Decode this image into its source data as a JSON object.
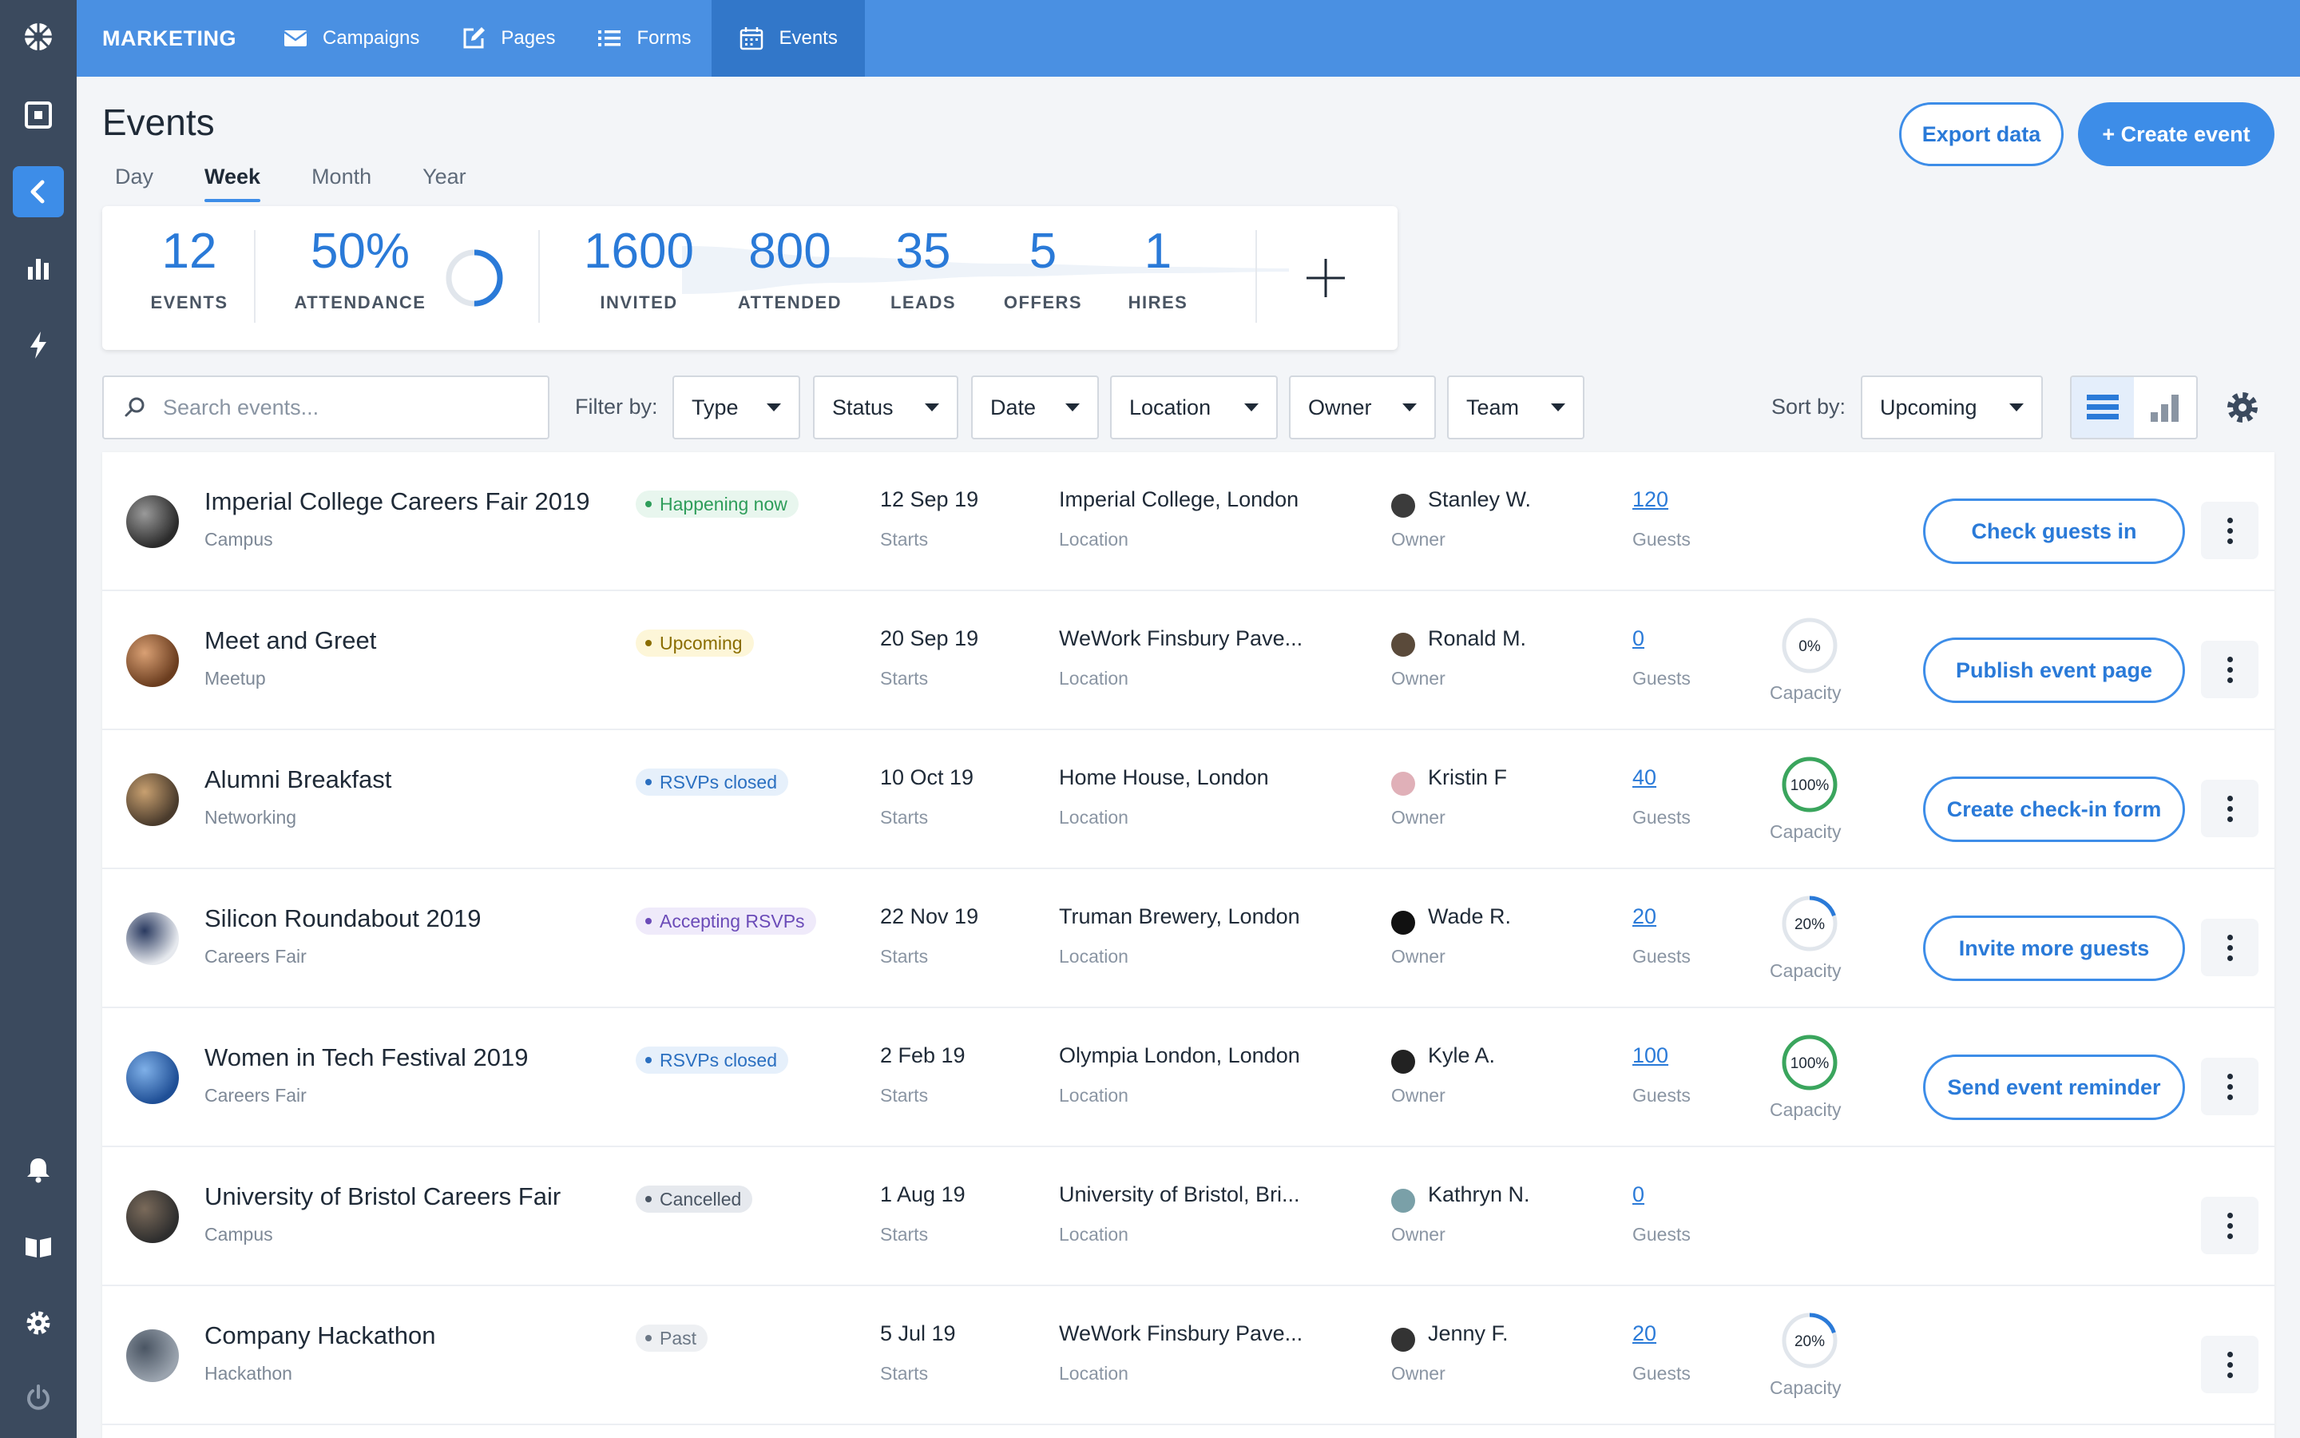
{
  "nav": {
    "brand": "MARKETING",
    "items": [
      {
        "label": "Campaigns",
        "icon": "envelope-icon"
      },
      {
        "label": "Pages",
        "icon": "edit-page-icon"
      },
      {
        "label": "Forms",
        "icon": "list-icon"
      },
      {
        "label": "Events",
        "icon": "calendar-icon",
        "active": true
      }
    ]
  },
  "page": {
    "title": "Events",
    "periods": [
      "Day",
      "Week",
      "Month",
      "Year"
    ],
    "active_period": "Week",
    "export_label": "Export data",
    "create_label": "+ Create event"
  },
  "stats": {
    "events": {
      "value": "12",
      "label": "EVENTS"
    },
    "attendance": {
      "value": "50%",
      "label": "ATTENDANCE",
      "fraction": 0.5
    },
    "funnel": [
      {
        "value": "1600",
        "label": "INVITED"
      },
      {
        "value": "800",
        "label": "ATTENDED"
      },
      {
        "value": "35",
        "label": "LEADS"
      },
      {
        "value": "5",
        "label": "OFFERS"
      },
      {
        "value": "1",
        "label": "HIRES"
      }
    ]
  },
  "filters": {
    "search_placeholder": "Search events...",
    "filter_by": "Filter by:",
    "type": "Type",
    "status": "Status",
    "date": "Date",
    "location": "Location",
    "owner": "Owner",
    "team": "Team",
    "sort_by": "Sort by:",
    "sort_value": "Upcoming"
  },
  "labels": {
    "starts": "Starts",
    "location": "Location",
    "owner": "Owner",
    "guests": "Guests",
    "capacity": "Capacity"
  },
  "colors": {
    "accent": "#3d8de8",
    "happening": "#2e9d5a",
    "upcoming": "#8a6d00",
    "closed": "#2a6fc0",
    "accepting": "#6b4bb8",
    "cancelled": "#4a5563",
    "past": "#6b7785"
  },
  "events": [
    {
      "name": "Imperial College Careers Fair 2019",
      "type": "Campus",
      "status": "Happening now",
      "date": "12 Sep 19",
      "location": "Imperial College, London",
      "owner": "Stanley W.",
      "guests": "120",
      "capacity": "",
      "action": "Check guests in"
    },
    {
      "name": "Meet and Greet",
      "type": "Meetup",
      "status": "Upcoming",
      "date": "20 Sep 19",
      "location": "WeWork Finsbury Pave...",
      "owner": "Ronald M.",
      "guests": "0",
      "capacity": "0%",
      "action": "Publish event page"
    },
    {
      "name": "Alumni Breakfast",
      "type": "Networking",
      "status": "RSVPs closed",
      "date": "10 Oct 19",
      "location": "Home House, London",
      "owner": "Kristin F",
      "guests": "40",
      "capacity": "100%",
      "action": "Create check-in form"
    },
    {
      "name": "Silicon Roundabout 2019",
      "type": "Careers Fair",
      "status": "Accepting RSVPs",
      "date": "22 Nov 19",
      "location": "Truman Brewery, London",
      "owner": "Wade R.",
      "guests": "20",
      "capacity": "20%",
      "action": "Invite more guests"
    },
    {
      "name": "Women in Tech Festival 2019",
      "type": "Careers Fair",
      "status": "RSVPs closed",
      "date": "2 Feb 19",
      "location": "Olympia London, London",
      "owner": "Kyle A.",
      "guests": "100",
      "capacity": "100%",
      "action": "Send event reminder"
    },
    {
      "name": "University of Bristol Careers Fair",
      "type": "Campus",
      "status": "Cancelled",
      "date": "1 Aug 19",
      "location": "University of Bristol, Bri...",
      "owner": "Kathryn N.",
      "guests": "0",
      "capacity": "",
      "action": ""
    },
    {
      "name": "Company Hackathon",
      "type": "Hackathon",
      "status": "Past",
      "date": "5 Jul 19",
      "location": "WeWork Finsbury Pave...",
      "owner": "Jenny F.",
      "guests": "20",
      "capacity": "20%",
      "action": ""
    }
  ]
}
